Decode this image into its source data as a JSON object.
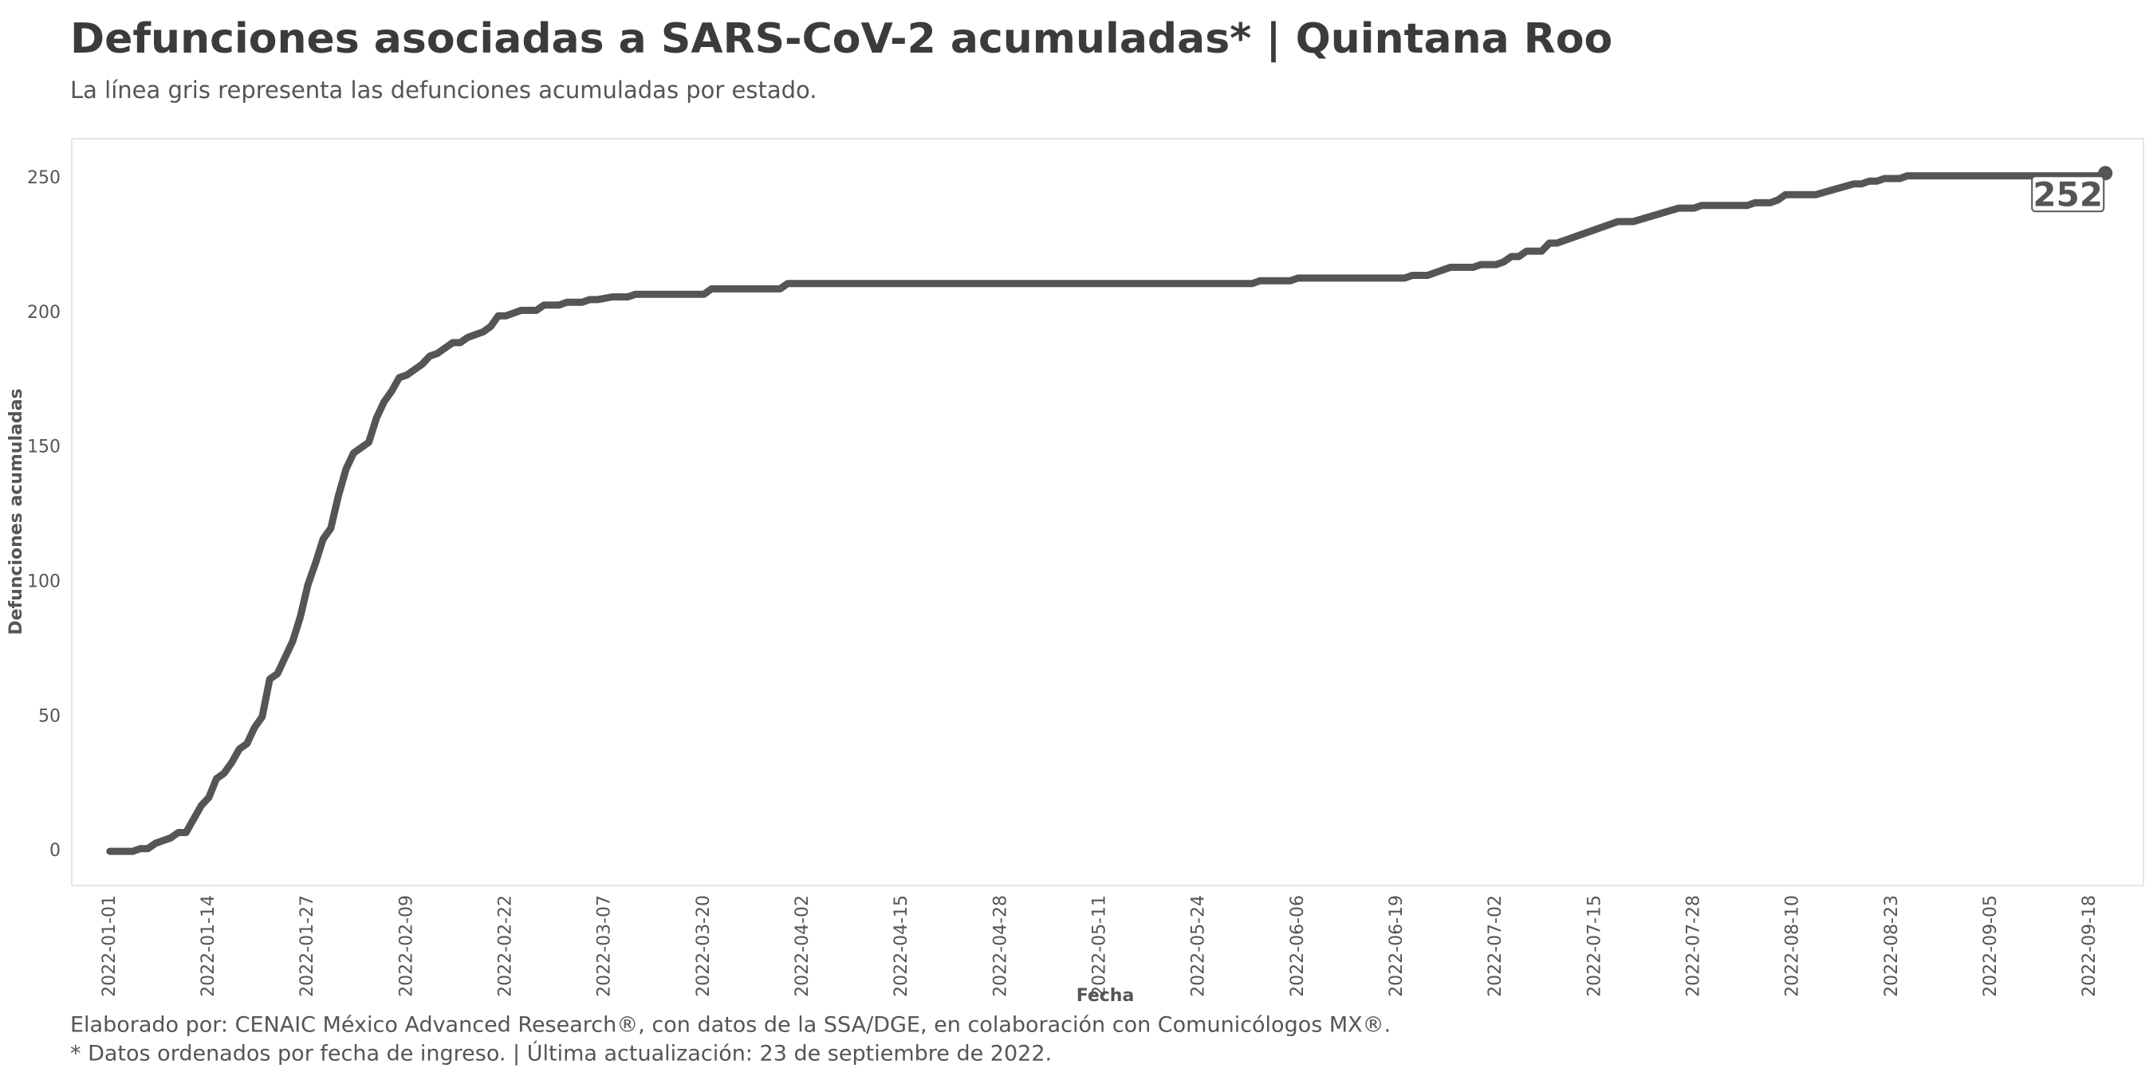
{
  "chart_data": {
    "type": "line",
    "title": "Defunciones asociadas a SARS-CoV-2 acumuladas* | Quintana Roo",
    "subtitle": "La línea gris representa las defunciones acumuladas por estado.",
    "x_label": "Fecha",
    "y_label": "Defunciones acumuladas",
    "caption": [
      "Elaborado por: CENAIC México Advanced Research®, con datos de la SSA/DGE, en colaboración con Comunicólogos MX®.",
      "* Datos ordenados por fecha de ingreso. | Última actualización: 23 de septiembre de 2022."
    ],
    "xlim": [
      "2021-12-27",
      "2022-09-25"
    ],
    "xticks": [
      "2022-01-01",
      "2022-01-14",
      "2022-01-27",
      "2022-02-09",
      "2022-02-22",
      "2022-03-07",
      "2022-03-20",
      "2022-04-02",
      "2022-04-15",
      "2022-04-28",
      "2022-05-11",
      "2022-05-24",
      "2022-06-06",
      "2022-06-19",
      "2022-07-02",
      "2022-07-15",
      "2022-07-28",
      "2022-08-10",
      "2022-08-23",
      "2022-09-05",
      "2022-09-18"
    ],
    "ylim": [
      -12.7,
      264.8
    ],
    "yticks": [
      0,
      50,
      100,
      150,
      200,
      250
    ],
    "grid": false,
    "series": [
      {
        "name": "Quintana Roo",
        "color": "#555555",
        "x": [
          "2022-01-01",
          "2022-01-04",
          "2022-01-05",
          "2022-01-06",
          "2022-01-07",
          "2022-01-09",
          "2022-01-10",
          "2022-01-11",
          "2022-01-13",
          "2022-01-14",
          "2022-01-15",
          "2022-01-16",
          "2022-01-17",
          "2022-01-18",
          "2022-01-19",
          "2022-01-20",
          "2022-01-21",
          "2022-01-22",
          "2022-01-23",
          "2022-01-24",
          "2022-01-25",
          "2022-01-26",
          "2022-01-27",
          "2022-01-28",
          "2022-01-29",
          "2022-01-30",
          "2022-01-31",
          "2022-02-01",
          "2022-02-02",
          "2022-02-04",
          "2022-02-05",
          "2022-02-06",
          "2022-02-07",
          "2022-02-08",
          "2022-02-09",
          "2022-02-11",
          "2022-02-12",
          "2022-02-13",
          "2022-02-15",
          "2022-02-16",
          "2022-02-17",
          "2022-02-19",
          "2022-02-20",
          "2022-02-21",
          "2022-02-22",
          "2022-02-24",
          "2022-02-26",
          "2022-02-27",
          "2022-03-01",
          "2022-03-02",
          "2022-03-04",
          "2022-03-05",
          "2022-03-06",
          "2022-03-08",
          "2022-03-10",
          "2022-03-11",
          "2022-03-20",
          "2022-03-21",
          "2022-03-30",
          "2022-03-31",
          "2022-05-31",
          "2022-06-01",
          "2022-06-05",
          "2022-06-06",
          "2022-06-20",
          "2022-06-21",
          "2022-06-23",
          "2022-06-26",
          "2022-06-29",
          "2022-06-30",
          "2022-07-02",
          "2022-07-03",
          "2022-07-04",
          "2022-07-05",
          "2022-07-06",
          "2022-07-08",
          "2022-07-09",
          "2022-07-10",
          "2022-07-17",
          "2022-07-18",
          "2022-07-20",
          "2022-07-26",
          "2022-07-28",
          "2022-07-29",
          "2022-08-04",
          "2022-08-05",
          "2022-08-07",
          "2022-08-08",
          "2022-08-09",
          "2022-08-13",
          "2022-08-18",
          "2022-08-19",
          "2022-08-20",
          "2022-08-21",
          "2022-08-22",
          "2022-08-24",
          "2022-08-25",
          "2022-09-19",
          "2022-09-20"
        ],
        "values": [
          0,
          0,
          1,
          1,
          3,
          5,
          7,
          7,
          17,
          20,
          27,
          29,
          33,
          38,
          40,
          46,
          50,
          64,
          66,
          72,
          78,
          87,
          99,
          107,
          116,
          120,
          132,
          142,
          148,
          152,
          161,
          167,
          171,
          176,
          177,
          181,
          184,
          185,
          189,
          189,
          191,
          193,
          195,
          199,
          199,
          201,
          201,
          203,
          203,
          204,
          204,
          205,
          205,
          206,
          206,
          207,
          207,
          209,
          209,
          211,
          211,
          212,
          212,
          213,
          213,
          214,
          214,
          217,
          217,
          218,
          218,
          219,
          221,
          221,
          223,
          223,
          226,
          226,
          233,
          234,
          234,
          239,
          239,
          240,
          240,
          241,
          241,
          242,
          244,
          244,
          248,
          248,
          249,
          249,
          250,
          250,
          251,
          251,
          252
        ]
      }
    ]
  }
}
